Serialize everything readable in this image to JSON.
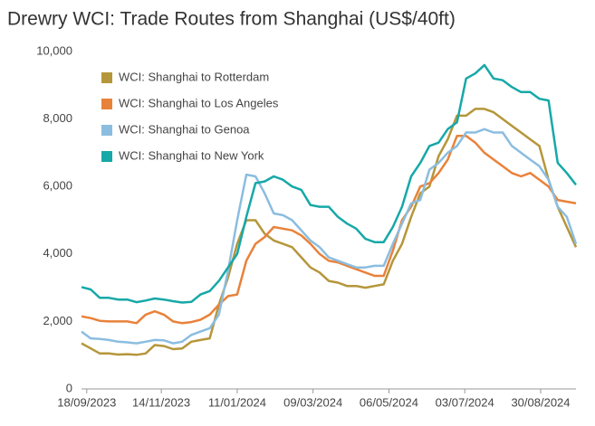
{
  "chart_data": {
    "type": "line",
    "title": "Drewry WCI: Trade Routes from Shanghai (US$/40ft)",
    "x": [
      "2023-09-14",
      "2023-09-21",
      "2023-09-28",
      "2023-10-05",
      "2023-10-12",
      "2023-10-19",
      "2023-10-26",
      "2023-11-02",
      "2023-11-09",
      "2023-11-16",
      "2023-11-23",
      "2023-11-30",
      "2023-12-07",
      "2023-12-14",
      "2023-12-21",
      "2023-12-28",
      "2024-01-04",
      "2024-01-11",
      "2024-01-18",
      "2024-01-25",
      "2024-02-01",
      "2024-02-08",
      "2024-02-15",
      "2024-02-22",
      "2024-02-29",
      "2024-03-07",
      "2024-03-14",
      "2024-03-21",
      "2024-03-28",
      "2024-04-04",
      "2024-04-11",
      "2024-04-18",
      "2024-04-25",
      "2024-05-02",
      "2024-05-09",
      "2024-05-16",
      "2024-05-23",
      "2024-05-30",
      "2024-06-06",
      "2024-06-13",
      "2024-06-20",
      "2024-06-27",
      "2024-07-04",
      "2024-07-11",
      "2024-07-18",
      "2024-07-25",
      "2024-08-01",
      "2024-08-08",
      "2024-08-15",
      "2024-08-22",
      "2024-08-29",
      "2024-09-05",
      "2024-09-12",
      "2024-09-19",
      "2024-09-26"
    ],
    "xlim": [
      "2023-09-14",
      "2024-09-26"
    ],
    "xticks": [
      {
        "value": "2023-09-18",
        "label": "18/09/2023"
      },
      {
        "value": "2023-11-14",
        "label": "14/11/2023"
      },
      {
        "value": "2024-01-11",
        "label": "11/01/2024"
      },
      {
        "value": "2024-03-09",
        "label": "09/03/2024"
      },
      {
        "value": "2024-05-06",
        "label": "06/05/2024"
      },
      {
        "value": "2024-07-03",
        "label": "03/07/2024"
      },
      {
        "value": "2024-08-30",
        "label": "30/08/2024"
      }
    ],
    "ylim": [
      0,
      10000
    ],
    "yticks": [
      0,
      {
        "value": 2000,
        "label": "2,000"
      },
      {
        "value": 4000,
        "label": "4,000"
      },
      {
        "value": 6000,
        "label": "6,000"
      },
      {
        "value": 8000,
        "label": "8,000"
      },
      {
        "value": 10000,
        "label": "10,000"
      }
    ],
    "grid": false,
    "legend": "top-left",
    "series": [
      {
        "name": "WCI: Shanghai to Rotterdam",
        "color": "#b5963a",
        "values": [
          1350,
          1200,
          1050,
          1050,
          1020,
          1030,
          1010,
          1050,
          1300,
          1270,
          1180,
          1200,
          1400,
          1450,
          1500,
          2500,
          3300,
          4300,
          5000,
          5000,
          4600,
          4400,
          4300,
          4200,
          3900,
          3600,
          3450,
          3200,
          3150,
          3050,
          3050,
          3000,
          3050,
          3100,
          3800,
          4300,
          5100,
          5800,
          6000,
          6900,
          7400,
          8100,
          8100,
          8300,
          8300,
          8200,
          8000,
          7800,
          7600,
          7400,
          7200,
          6200,
          5400,
          4800,
          4200
        ]
      },
      {
        "name": "WCI: Shanghai to Los Angeles",
        "color": "#e8823a",
        "values": [
          2150,
          2100,
          2020,
          2000,
          2000,
          2000,
          1950,
          2200,
          2300,
          2200,
          2000,
          1950,
          1980,
          2050,
          2200,
          2500,
          2750,
          2800,
          3800,
          4300,
          4500,
          4800,
          4750,
          4700,
          4550,
          4300,
          4000,
          3800,
          3750,
          3650,
          3550,
          3450,
          3350,
          3350,
          4100,
          5000,
          5400,
          6000,
          6100,
          6400,
          6800,
          7500,
          7500,
          7300,
          7000,
          6800,
          6600,
          6400,
          6300,
          6400,
          6200,
          6000,
          5600,
          5550,
          5500
        ]
      },
      {
        "name": "WCI: Shanghai to Genoa",
        "color": "#8bbde0",
        "values": [
          1700,
          1500,
          1480,
          1450,
          1400,
          1380,
          1350,
          1400,
          1450,
          1440,
          1350,
          1400,
          1600,
          1700,
          1800,
          2200,
          3500,
          5000,
          6350,
          6300,
          5800,
          5200,
          5150,
          5000,
          4700,
          4400,
          4200,
          3900,
          3800,
          3700,
          3600,
          3600,
          3650,
          3650,
          4300,
          4900,
          5500,
          5600,
          6500,
          6700,
          7000,
          7200,
          7600,
          7600,
          7700,
          7600,
          7600,
          7200,
          7000,
          6800,
          6600,
          6200,
          5400,
          5100,
          4300
        ]
      },
      {
        "name": "WCI: Shanghai to New York",
        "color": "#17a8a8",
        "values": [
          3020,
          2950,
          2700,
          2700,
          2650,
          2650,
          2570,
          2620,
          2680,
          2650,
          2600,
          2560,
          2580,
          2800,
          2900,
          3200,
          3600,
          4000,
          5100,
          6100,
          6150,
          6300,
          6200,
          6000,
          5900,
          5450,
          5400,
          5400,
          5100,
          4900,
          4750,
          4450,
          4350,
          4350,
          4800,
          5400,
          6300,
          6700,
          7200,
          7300,
          7700,
          7900,
          9200,
          9350,
          9600,
          9200,
          9150,
          8950,
          8800,
          8800,
          8600,
          8550,
          6700,
          6400,
          6050
        ]
      }
    ]
  }
}
